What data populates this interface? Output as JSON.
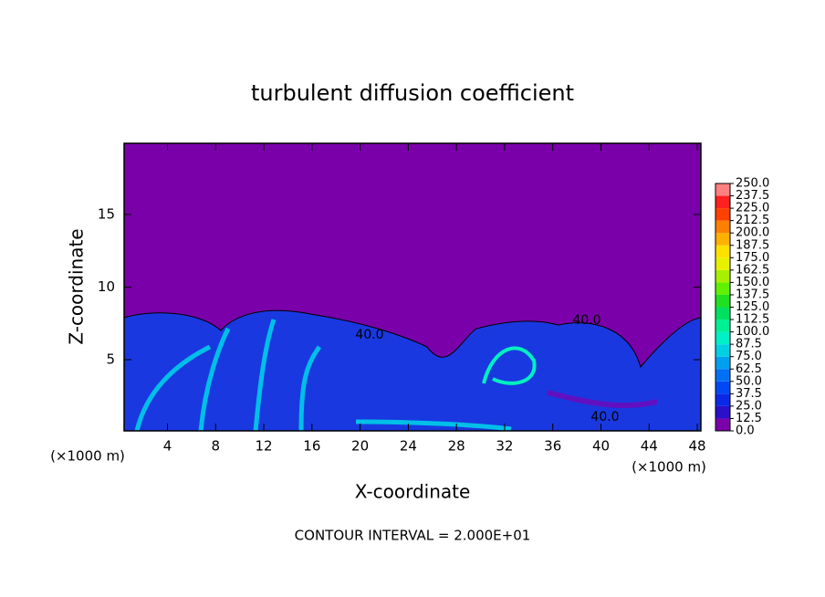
{
  "chart_data": {
    "type": "contour",
    "title": "turbulent diffusion coefficient",
    "xlabel": "X-coordinate",
    "ylabel": "Z-coordinate",
    "x_unit_left": "(×1000 m)",
    "x_unit_right": "(×1000 m)",
    "xlim": [
      0.4,
      48.3
    ],
    "xticks": [
      4,
      8,
      12,
      16,
      20,
      24,
      28,
      32,
      36,
      40,
      44,
      48
    ],
    "ylim": [
      0.1,
      19.9
    ],
    "yticks": [
      5,
      10,
      15
    ],
    "contour_labels": [
      "40.0",
      "40.0",
      "40.0"
    ],
    "footer": "CONTOUR INTERVAL = 2.000E+01",
    "colorbar": {
      "levels": [
        {
          "value": 0,
          "label": "0.0"
        },
        {
          "value": 12.5,
          "label": "12.5"
        },
        {
          "value": 25,
          "label": "25.0"
        },
        {
          "value": 37.5,
          "label": "37.5"
        },
        {
          "value": 50,
          "label": "50.0"
        },
        {
          "value": 62.5,
          "label": "62.5"
        },
        {
          "value": 75,
          "label": "75.0"
        },
        {
          "value": 87.5,
          "label": "87.5"
        },
        {
          "value": 100,
          "label": "100.0"
        },
        {
          "value": 112.5,
          "label": "112.5"
        },
        {
          "value": 125,
          "label": "125.0"
        },
        {
          "value": 137.5,
          "label": "137.5"
        },
        {
          "value": 150,
          "label": "150.0"
        },
        {
          "value": 162.5,
          "label": "162.5"
        },
        {
          "value": 175,
          "label": "175.0"
        },
        {
          "value": 187.5,
          "label": "187.5"
        },
        {
          "value": 200,
          "label": "200.0"
        },
        {
          "value": 212.5,
          "label": "212.5"
        },
        {
          "value": 225,
          "label": "225.0"
        },
        {
          "value": 237.5,
          "label": "237.5"
        },
        {
          "value": 250,
          "label": "250.0"
        }
      ],
      "colors": [
        "#7a00aa",
        "#2a10c8",
        "#0a28e6",
        "#0048f4",
        "#0070f4",
        "#00a0f0",
        "#00d0e4",
        "#00f0c8",
        "#00f094",
        "#00e060",
        "#20e020",
        "#60f000",
        "#a8f000",
        "#e8f000",
        "#ffe000",
        "#ffb000",
        "#ff8000",
        "#ff4000",
        "#ff2020",
        "#ff8080"
      ]
    }
  }
}
